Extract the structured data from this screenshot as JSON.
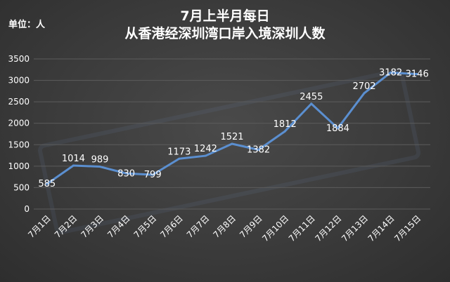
{
  "header": {
    "unit": "单位：人",
    "title_line1": "7月上半月每日",
    "title_line2": "从香港经深圳湾口岸入境深圳人数"
  },
  "colors": {
    "line": "#5b8fd0",
    "text": "#ffffff",
    "grid": "#5c5c5c"
  },
  "chart_data": {
    "type": "line",
    "categories": [
      "7月1日",
      "7月2日",
      "7月3日",
      "7月4日",
      "7月5日",
      "7月6日",
      "7月7日",
      "7月8日",
      "7月9日",
      "7月10日",
      "7月11日",
      "7月12日",
      "7月13日",
      "7月14日",
      "7月15日"
    ],
    "values": [
      585,
      1014,
      989,
      830,
      799,
      1173,
      1242,
      1521,
      1382,
      1812,
      2455,
      1884,
      2702,
      3182,
      3146
    ],
    "ylim": [
      0,
      3500
    ],
    "yticks": [
      0,
      500,
      1000,
      1500,
      2000,
      2500,
      3000,
      3500
    ],
    "grid": true,
    "legend": "none",
    "xlabel": "",
    "ylabel": ""
  }
}
